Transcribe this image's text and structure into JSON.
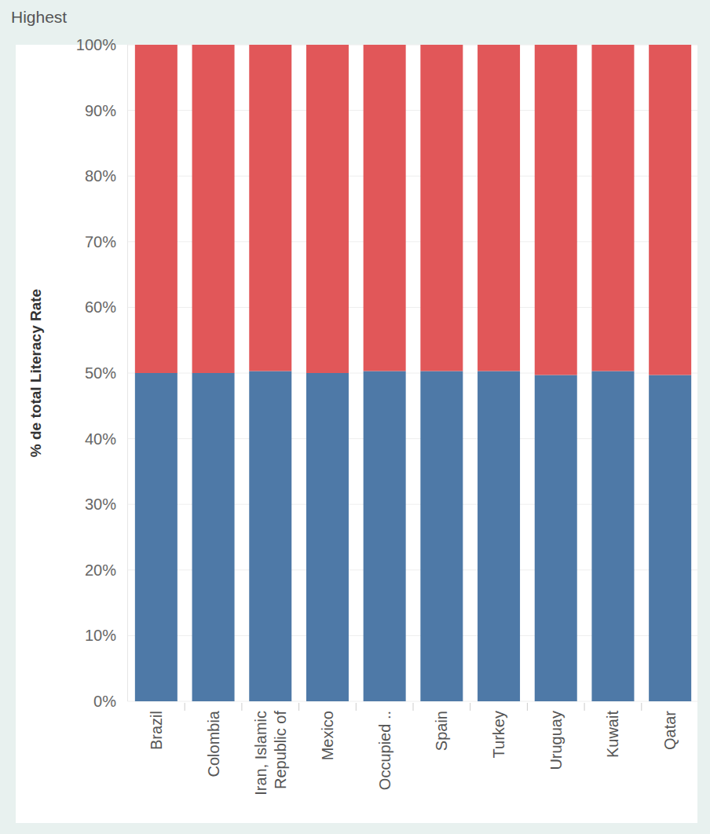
{
  "chart_data": {
    "type": "bar",
    "title": "Highest",
    "y_label": "% de total Literacy Rate",
    "stacked": true,
    "grid": true,
    "categories": [
      "Brazil",
      "Colombia",
      "Iran, Islamic Republic of",
      "Mexico",
      "Occupied ..",
      "Spain",
      "Turkey",
      "Uruguay",
      "Kuwait",
      "Qatar"
    ],
    "series": [
      {
        "color": "#4e79a7",
        "values": [
          50.0,
          50.0,
          50.3,
          50.0,
          50.3,
          50.3,
          50.3,
          49.7,
          50.3,
          49.7
        ]
      },
      {
        "color": "#e15759",
        "values": [
          50.0,
          50.0,
          49.7,
          50.0,
          49.7,
          49.7,
          49.7,
          50.3,
          49.7,
          50.3
        ]
      }
    ],
    "ylim": [
      0,
      100
    ],
    "yticks": [
      {
        "value": 0,
        "label": "0%"
      },
      {
        "value": 10,
        "label": "10%"
      },
      {
        "value": 20,
        "label": "20%"
      },
      {
        "value": 30,
        "label": "30%"
      },
      {
        "value": 40,
        "label": "40%"
      },
      {
        "value": 50,
        "label": "50%"
      },
      {
        "value": 60,
        "label": "60%"
      },
      {
        "value": 70,
        "label": "70%"
      },
      {
        "value": 80,
        "label": "80%"
      },
      {
        "value": 90,
        "label": "90%"
      },
      {
        "value": 100,
        "label": "100%"
      }
    ]
  }
}
